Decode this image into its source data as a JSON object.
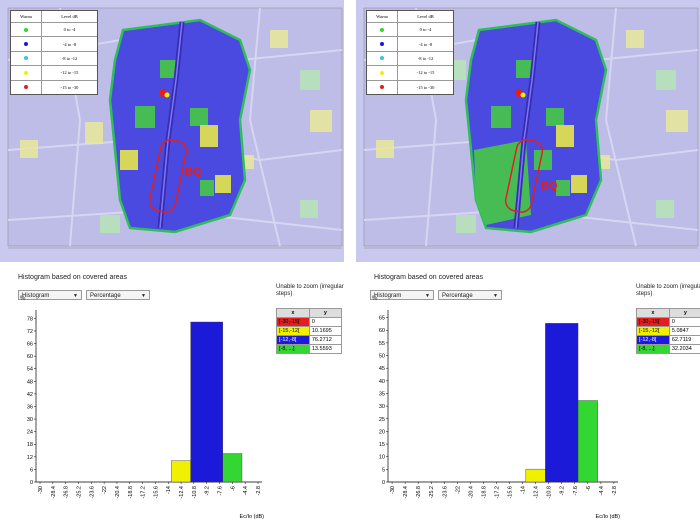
{
  "colors": {
    "red": "#e02020",
    "yellow": "#f0f000",
    "blue": "#1a1ad8",
    "green": "#33d633",
    "cyan": "#34c6e6"
  },
  "maps": [
    {
      "legend": {
        "header": [
          "Warna",
          "Level dB"
        ],
        "rows": [
          {
            "color": "green",
            "label": "0 to -4"
          },
          {
            "color": "blue",
            "label": "-4 to -8"
          },
          {
            "color": "cyan",
            "label": "-8 to -12"
          },
          {
            "color": "yellow",
            "label": "-12 to -15"
          },
          {
            "color": "red",
            "label": "-15 to -30"
          }
        ]
      },
      "label": "BQ"
    },
    {
      "legend": {
        "header": [
          "Warna",
          "Level dB"
        ],
        "rows": [
          {
            "color": "green",
            "label": "0 to -4"
          },
          {
            "color": "blue",
            "label": "-4 to -8"
          },
          {
            "color": "cyan",
            "label": "-8 to -12"
          },
          {
            "color": "yellow",
            "label": "-12 to -15"
          },
          {
            "color": "red",
            "label": "-15 to -30"
          }
        ]
      },
      "label": "BQ"
    }
  ],
  "panels": [
    {
      "title": "Histogram based on covered areas",
      "dropdown1": "Histogram",
      "dropdown2": "Percentage",
      "zoom_note": "Unable to zoom (irregular steps)",
      "y_unit": "%",
      "table_header": [
        "x",
        "y"
      ],
      "table_rows": [
        {
          "x": "[-30,-15[",
          "y": "0",
          "color": "red"
        },
        {
          "x": "[-15,-12[",
          "y": "10.1695",
          "color": "yellow"
        },
        {
          "x": "[-12,-8[",
          "y": "76.2712",
          "color": "blue"
        },
        {
          "x": "[-8, ...]",
          "y": "13.5593",
          "color": "green"
        }
      ]
    },
    {
      "title": "Histogram based on covered areas",
      "dropdown1": "Histogram",
      "dropdown2": "Percentage",
      "zoom_note": "Unable to zoom (irregular steps)",
      "y_unit": "%",
      "table_header": [
        "x",
        "y"
      ],
      "table_rows": [
        {
          "x": "[-30,-15[",
          "y": "0",
          "color": "red"
        },
        {
          "x": "[-15,-12[",
          "y": "5.0847",
          "color": "yellow"
        },
        {
          "x": "[-12,-8[",
          "y": "62.7119",
          "color": "blue"
        },
        {
          "x": "[-8, ...]",
          "y": "32.2034",
          "color": "green"
        }
      ]
    }
  ],
  "chart_data": [
    {
      "type": "bar",
      "title": "",
      "xlabel": "Ec/Io (dB)",
      "ylabel": "%",
      "x_ticks": [
        "-30",
        "-28.4",
        "-26.8",
        "-25.2",
        "-23.6",
        "-22",
        "-20.4",
        "-18.8",
        "-17.2",
        "-15.6",
        "-14",
        "-12.4",
        "-10.8",
        "-9.2",
        "-7.6",
        "-6",
        "-4.4",
        "-2.8"
      ],
      "y_ticks": [
        0,
        6,
        12,
        18,
        24,
        30,
        36,
        42,
        48,
        54,
        60,
        66,
        72,
        78
      ],
      "ylim": [
        0,
        82
      ],
      "bars": [
        {
          "x0": -13.6,
          "x1": -11.2,
          "value": 10.1695,
          "color": "yellow"
        },
        {
          "x0": -11.2,
          "x1": -7.2,
          "value": 76.2712,
          "color": "blue"
        },
        {
          "x0": -7.2,
          "x1": -4.8,
          "value": 13.5593,
          "color": "green"
        }
      ],
      "xlim": [
        -30.5,
        -2.3
      ]
    },
    {
      "type": "bar",
      "title": "",
      "xlabel": "Ec/Io (dB)",
      "ylabel": "%",
      "x_ticks": [
        "-30",
        "-28.4",
        "-26.8",
        "-25.2",
        "-23.6",
        "-22",
        "-20.4",
        "-18.8",
        "-17.2",
        "-15.6",
        "-14",
        "-12.4",
        "-10.8",
        "-9.2",
        "-7.6",
        "-6",
        "-4.4",
        "-2.8"
      ],
      "y_ticks": [
        0,
        5,
        10,
        15,
        20,
        25,
        30,
        35,
        40,
        45,
        50,
        55,
        60,
        65
      ],
      "ylim": [
        0,
        68
      ],
      "bars": [
        {
          "x0": -13.6,
          "x1": -11.2,
          "value": 5.0847,
          "color": "yellow"
        },
        {
          "x0": -11.2,
          "x1": -7.2,
          "value": 62.7119,
          "color": "blue"
        },
        {
          "x0": -7.2,
          "x1": -4.8,
          "value": 32.2034,
          "color": "green"
        }
      ],
      "xlim": [
        -30.5,
        -2.3
      ]
    }
  ]
}
